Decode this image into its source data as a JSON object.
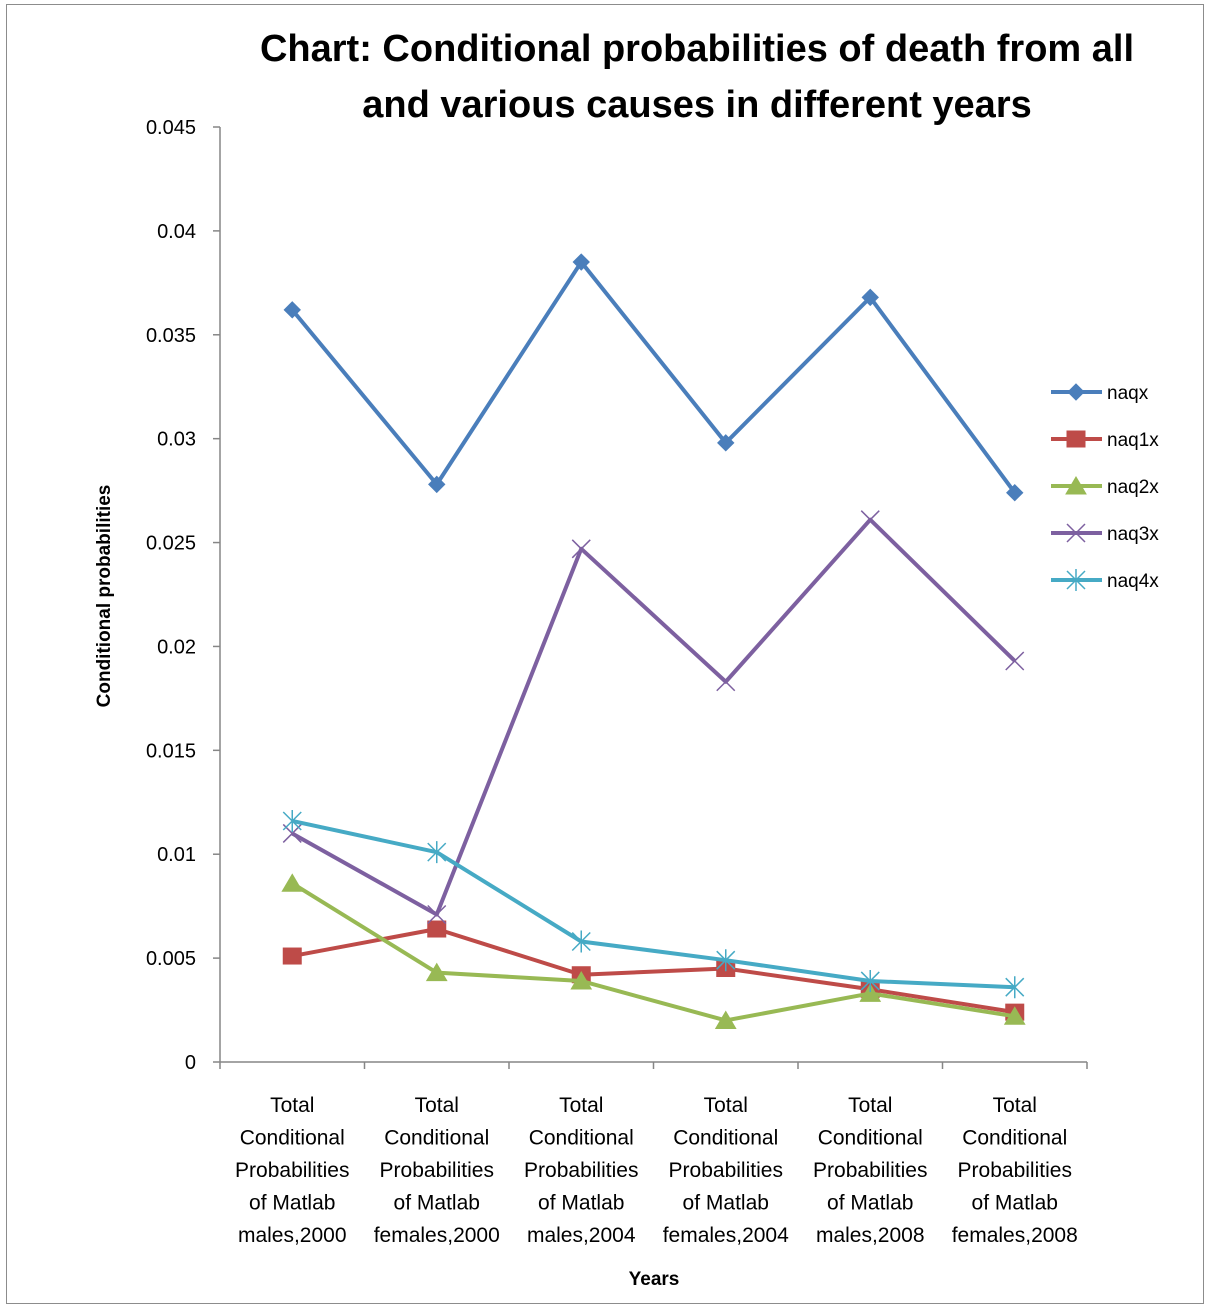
{
  "chart_data": {
    "type": "line",
    "title_lines": [
      "Chart: Conditional probabilities of death from all",
      "and various causes in different years"
    ],
    "xlabel": "Years",
    "ylabel": "Conditional probabilities",
    "ylim": [
      0,
      0.045
    ],
    "yticks": [
      "0.045",
      "0.04",
      "0.035",
      "0.03",
      "0.025",
      "0.02",
      "0.015",
      "0.01",
      "0.005",
      "0"
    ],
    "ytick_values": [
      0.045,
      0.04,
      0.035,
      0.03,
      0.025,
      0.02,
      0.015,
      0.01,
      0.005,
      0
    ],
    "categories": [
      [
        "Total",
        "Conditional",
        "Probabilities",
        "of Matlab",
        "males,2000"
      ],
      [
        "Total",
        "Conditional",
        "Probabilities",
        "of Matlab",
        "females,2000"
      ],
      [
        "Total",
        "Conditional",
        "Probabilities",
        "of Matlab",
        "males,2004"
      ],
      [
        "Total",
        "Conditional",
        "Probabilities",
        "of Matlab",
        "females,2004"
      ],
      [
        "Total",
        "Conditional",
        "Probabilities",
        "of Matlab",
        "males,2008"
      ],
      [
        "Total",
        "Conditional",
        "Probabilities",
        "of Matlab",
        "females,2008"
      ]
    ],
    "grid": false,
    "legend_position": "right",
    "series": [
      {
        "name": "naqx",
        "color": "#4a7ebb",
        "marker": "diamond",
        "values": [
          0.0362,
          0.0278,
          0.0385,
          0.0298,
          0.0368,
          0.0274
        ]
      },
      {
        "name": "naq1x",
        "color": "#be4b48",
        "marker": "square",
        "values": [
          0.0051,
          0.0064,
          0.0042,
          0.0045,
          0.0035,
          0.0024
        ]
      },
      {
        "name": "naq2x",
        "color": "#98b954",
        "marker": "triangle",
        "values": [
          0.0086,
          0.0043,
          0.0039,
          0.002,
          0.0033,
          0.0022
        ]
      },
      {
        "name": "naq3x",
        "color": "#7d60a0",
        "marker": "x",
        "values": [
          0.011,
          0.0071,
          0.0247,
          0.0183,
          0.0261,
          0.0193
        ]
      },
      {
        "name": "naq4x",
        "color": "#46aac5",
        "marker": "star",
        "values": [
          0.0116,
          0.0101,
          0.0058,
          0.0049,
          0.0039,
          0.0036
        ]
      }
    ]
  }
}
